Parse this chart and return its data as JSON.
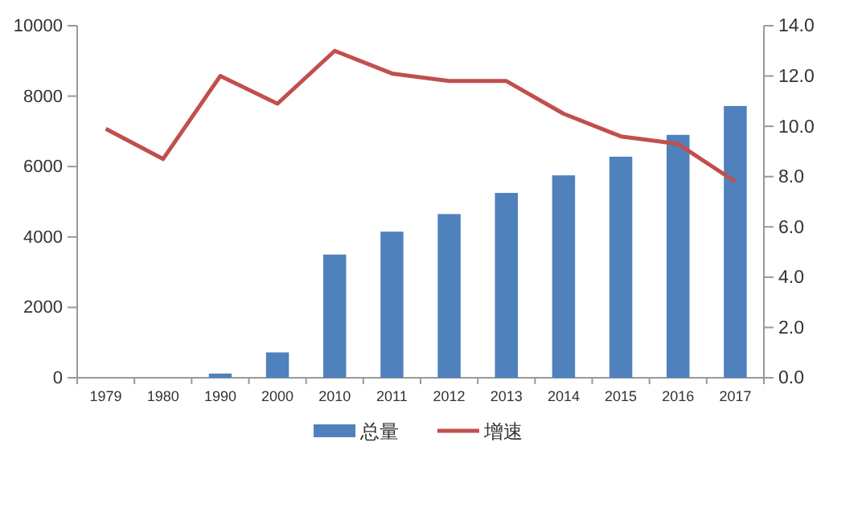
{
  "chart_data": {
    "type": "bar",
    "categories": [
      "1979",
      "1980",
      "1990",
      "2000",
      "2010",
      "2011",
      "2012",
      "2013",
      "2014",
      "2015",
      "2016",
      "2017"
    ],
    "series": [
      {
        "name": "总量",
        "color": "#4f81bd",
        "values": [
          0,
          0,
          120,
          720,
          3500,
          4150,
          4650,
          5250,
          5750,
          6280,
          6900,
          7720
        ]
      },
      {
        "name": "增速",
        "type": "line",
        "axis": "y2",
        "color": "#c0504d",
        "values": [
          9.9,
          8.7,
          12.0,
          10.9,
          13.0,
          12.1,
          11.8,
          11.8,
          10.5,
          9.6,
          9.3,
          7.8
        ]
      }
    ],
    "ylim": [
      0,
      10000
    ],
    "yticks": [
      0,
      2000,
      4000,
      6000,
      8000,
      10000
    ],
    "y2lim": [
      0,
      14
    ],
    "y2ticks": [
      {
        "value": 0,
        "label": "0.0"
      },
      {
        "value": 2,
        "label": "2.0"
      },
      {
        "value": 4,
        "label": "4.0"
      },
      {
        "value": 6,
        "label": "6.0"
      },
      {
        "value": 8,
        "label": "8.0"
      },
      {
        "value": 10,
        "label": "10.0"
      },
      {
        "value": 12,
        "label": "12.0"
      },
      {
        "value": 14,
        "label": "14.0"
      }
    ],
    "grid": false,
    "legend": "bottom",
    "marker": "none"
  }
}
